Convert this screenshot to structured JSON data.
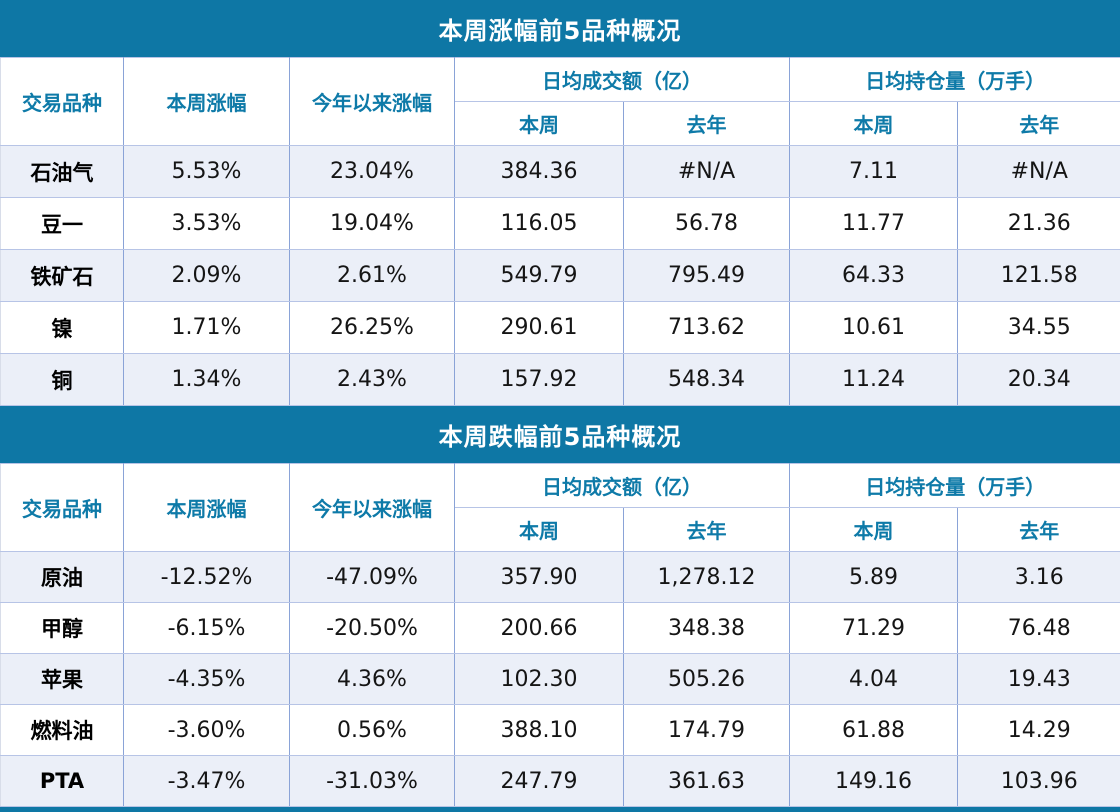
{
  "theme": {
    "title_bar_bg": "#0e77a5",
    "title_text": "#ffffff",
    "header_text": "#0e7aa8",
    "vertical_border": "#8aa3d7",
    "horizontal_border": "#b7c4e6",
    "banded_row_bg": "#ebeff8",
    "plain_row_bg": "#ffffff",
    "data_text": "#151515",
    "bottom_bar": "#0e77a5"
  },
  "tables": [
    {
      "title": "本周涨幅前5品种概况",
      "header": {
        "product": "交易品种",
        "week_change": "本周涨幅",
        "ytd_change": "今年以来涨幅",
        "turnover_group": "日均成交额（亿）",
        "position_group": "日均持仓量（万手）",
        "this_week": "本周",
        "last_year": "去年"
      },
      "rows": [
        {
          "cells": [
            "石油气",
            "5.53%",
            "23.04%",
            "384.36",
            "#N/A",
            "7.11",
            "#N/A"
          ]
        },
        {
          "cells": [
            "豆一",
            "3.53%",
            "19.04%",
            "116.05",
            "56.78",
            "11.77",
            "21.36"
          ]
        },
        {
          "cells": [
            "铁矿石",
            "2.09%",
            "2.61%",
            "549.79",
            "795.49",
            "64.33",
            "121.58"
          ]
        },
        {
          "cells": [
            "镍",
            "1.71%",
            "26.25%",
            "290.61",
            "713.62",
            "10.61",
            "34.55"
          ]
        },
        {
          "cells": [
            "铜",
            "1.34%",
            "2.43%",
            "157.92",
            "548.34",
            "11.24",
            "20.34"
          ]
        }
      ]
    },
    {
      "title": "本周跌幅前5品种概况",
      "header": {
        "product": "交易品种",
        "week_change": "本周涨幅",
        "ytd_change": "今年以来涨幅",
        "turnover_group": "日均成交额（亿）",
        "position_group": "日均持仓量（万手）",
        "this_week": "本周",
        "last_year": "去年"
      },
      "rows": [
        {
          "cells": [
            "原油",
            "-12.52%",
            "-47.09%",
            "357.90",
            "1,278.12",
            "5.89",
            "3.16"
          ]
        },
        {
          "cells": [
            "甲醇",
            "-6.15%",
            "-20.50%",
            "200.66",
            "348.38",
            "71.29",
            "76.48"
          ]
        },
        {
          "cells": [
            "苹果",
            "-4.35%",
            "4.36%",
            "102.30",
            "505.26",
            "4.04",
            "19.43"
          ]
        },
        {
          "cells": [
            "燃料油",
            "-3.60%",
            "0.56%",
            "388.10",
            "174.79",
            "61.88",
            "14.29"
          ]
        },
        {
          "cells": [
            "PTA",
            "-3.47%",
            "-31.03%",
            "247.79",
            "361.63",
            "149.16",
            "103.96"
          ]
        }
      ]
    }
  ],
  "chart_data": [
    {
      "type": "table",
      "title": "本周涨幅前5品种概况",
      "columns": [
        "交易品种",
        "本周涨幅",
        "今年以来涨幅",
        "日均成交额（亿）-本周",
        "日均成交额（亿）-去年",
        "日均持仓量（万手）-本周",
        "日均持仓量（万手）-去年"
      ],
      "rows": [
        [
          "石油气",
          "5.53%",
          "23.04%",
          384.36,
          "#N/A",
          7.11,
          "#N/A"
        ],
        [
          "豆一",
          "3.53%",
          "19.04%",
          116.05,
          56.78,
          11.77,
          21.36
        ],
        [
          "铁矿石",
          "2.09%",
          "2.61%",
          549.79,
          795.49,
          64.33,
          121.58
        ],
        [
          "镍",
          "1.71%",
          "26.25%",
          290.61,
          713.62,
          10.61,
          34.55
        ],
        [
          "铜",
          "1.34%",
          "2.43%",
          157.92,
          548.34,
          11.24,
          20.34
        ]
      ]
    },
    {
      "type": "table",
      "title": "本周跌幅前5品种概况",
      "columns": [
        "交易品种",
        "本周涨幅",
        "今年以来涨幅",
        "日均成交额（亿）-本周",
        "日均成交额（亿）-去年",
        "日均持仓量（万手）-本周",
        "日均持仓量（万手）-去年"
      ],
      "rows": [
        [
          "原油",
          "-12.52%",
          "-47.09%",
          357.9,
          1278.12,
          5.89,
          3.16
        ],
        [
          "甲醇",
          "-6.15%",
          "-20.50%",
          200.66,
          348.38,
          71.29,
          76.48
        ],
        [
          "苹果",
          "-4.35%",
          "4.36%",
          102.3,
          505.26,
          4.04,
          19.43
        ],
        [
          "燃料油",
          "-3.60%",
          "0.56%",
          388.1,
          174.79,
          61.88,
          14.29
        ],
        [
          "PTA",
          "-3.47%",
          "-31.03%",
          247.79,
          361.63,
          149.16,
          103.96
        ]
      ]
    }
  ]
}
